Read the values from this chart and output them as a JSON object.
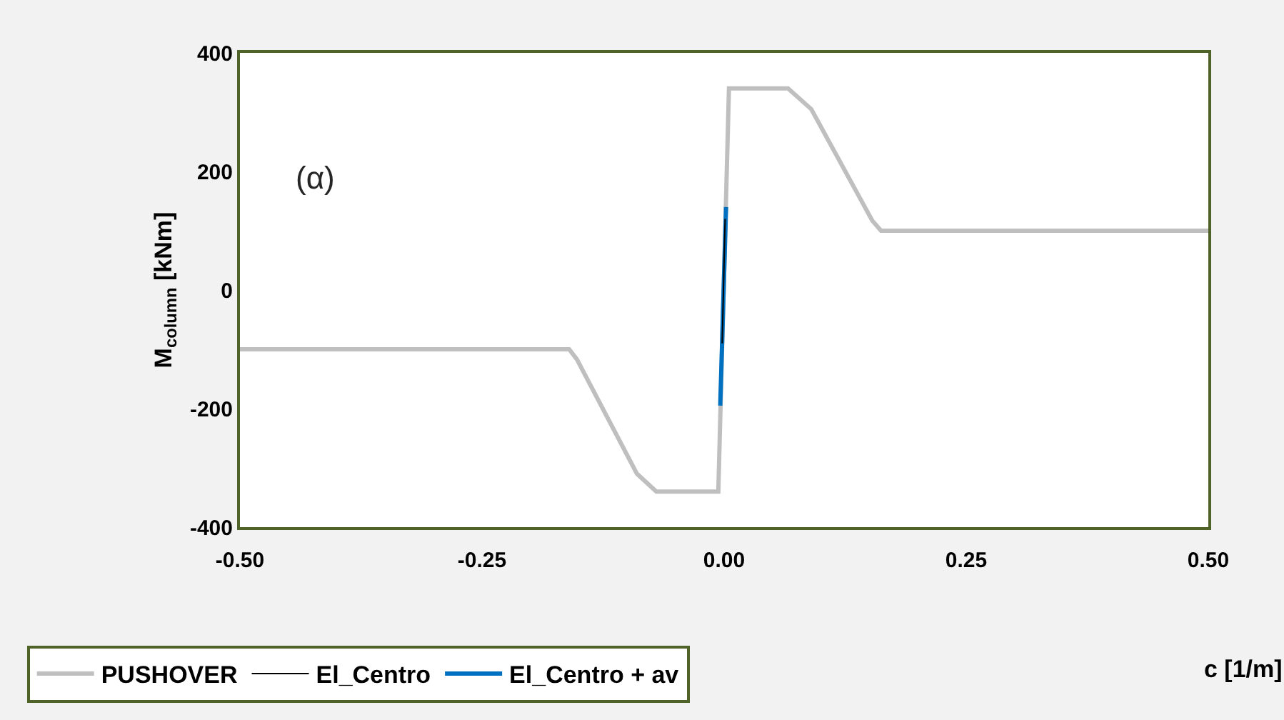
{
  "chart_data": {
    "type": "line",
    "xlabel": "c [1/m]",
    "ylabel": "M$_{column}$ [kNm]",
    "xlim": [
      -0.5,
      0.5
    ],
    "xticks": [
      {
        "value": -0.5,
        "label": "-0.50"
      },
      {
        "value": -0.25,
        "label": "-0.25"
      },
      {
        "value": 0,
        "label": "0.00"
      },
      {
        "value": 0.25,
        "label": "0.25"
      },
      {
        "value": 0.5,
        "label": "0.50"
      }
    ],
    "ylim": [
      -400,
      400
    ],
    "yticks": [
      -400,
      -200,
      0,
      200,
      400
    ],
    "legend": "bottom",
    "line_style": "solid",
    "marker": "none",
    "annotations": [
      "(α)"
    ],
    "series": [
      {
        "name": "PUSHOVER",
        "color": "#bfbfbf",
        "x": [
          -0.5,
          -0.16,
          -0.152,
          -0.09,
          -0.07,
          -0.006,
          0.005,
          0.066,
          0.09,
          0.153,
          0.162,
          0.5
        ],
        "values": [
          -100,
          -100,
          -117,
          -310,
          -340,
          -340,
          340,
          340,
          305,
          117,
          100,
          100
        ]
      },
      {
        "name": "El_Centro",
        "color": "#000000",
        "x": [
          -0.002,
          0.001
        ],
        "values": [
          -90,
          120
        ]
      },
      {
        "name": "El_Centro + av",
        "color": "#0070c0",
        "x": [
          -0.004,
          0.002
        ],
        "values": [
          -195,
          140
        ]
      }
    ]
  }
}
